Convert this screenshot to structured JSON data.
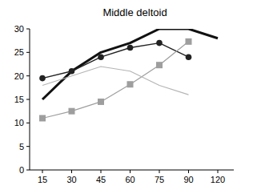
{
  "chart_data": {
    "type": "line",
    "title": "Middle deltoid",
    "categories": [
      "15",
      "30",
      "45",
      "60",
      "75",
      "90",
      "120"
    ],
    "ylim": [
      0,
      30
    ],
    "yticks": [
      0,
      5,
      10,
      15,
      20,
      25,
      30
    ],
    "series": [
      {
        "color": "#111111",
        "values": [
          15,
          21,
          25,
          27,
          30,
          30,
          28
        ]
      },
      {
        "color": "#222222",
        "marker": "circle",
        "values": [
          19.5,
          21,
          24,
          26,
          27,
          24,
          null
        ]
      },
      {
        "color": "#9e9e9e",
        "marker": "square",
        "values": [
          11,
          12.5,
          14.5,
          18.2,
          22.3,
          27.3,
          null
        ]
      },
      {
        "color": "#b4b4b4",
        "values": [
          18,
          20,
          22,
          21,
          18,
          16,
          null
        ]
      }
    ]
  }
}
